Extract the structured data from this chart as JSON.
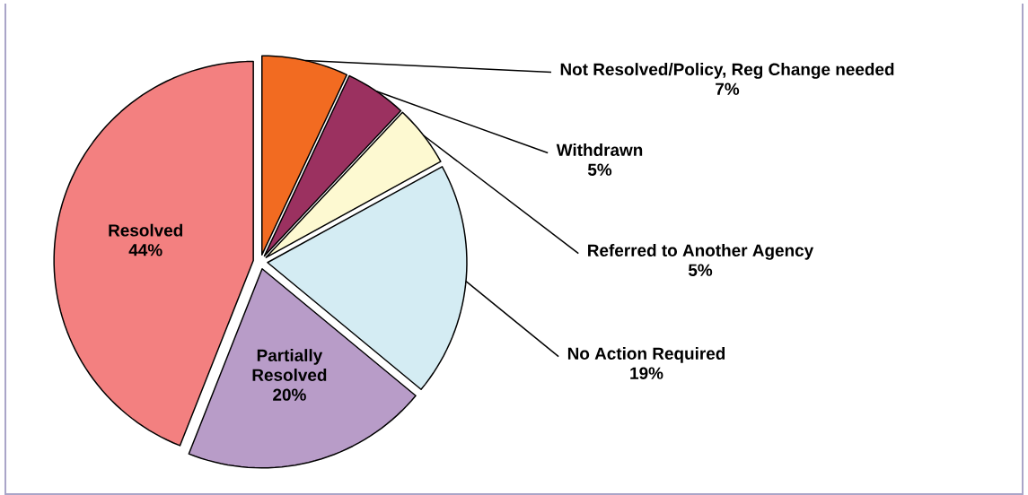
{
  "chart_data": {
    "type": "pie",
    "categories": [
      "Not Resolved/Policy, Reg Change needed",
      "Withdrawn",
      "Referred to Another Agency",
      "No Action Required",
      "Partially Resolved",
      "Resolved"
    ],
    "values": [
      7,
      5,
      5,
      19,
      20,
      44
    ],
    "value_labels": [
      "7%",
      "5%",
      "5%",
      "19%",
      "20%",
      "44%"
    ],
    "colors": [
      "#f26b21",
      "#9b3160",
      "#fdf9d1",
      "#d4ecf3",
      "#b89cc8",
      "#f38080"
    ]
  }
}
